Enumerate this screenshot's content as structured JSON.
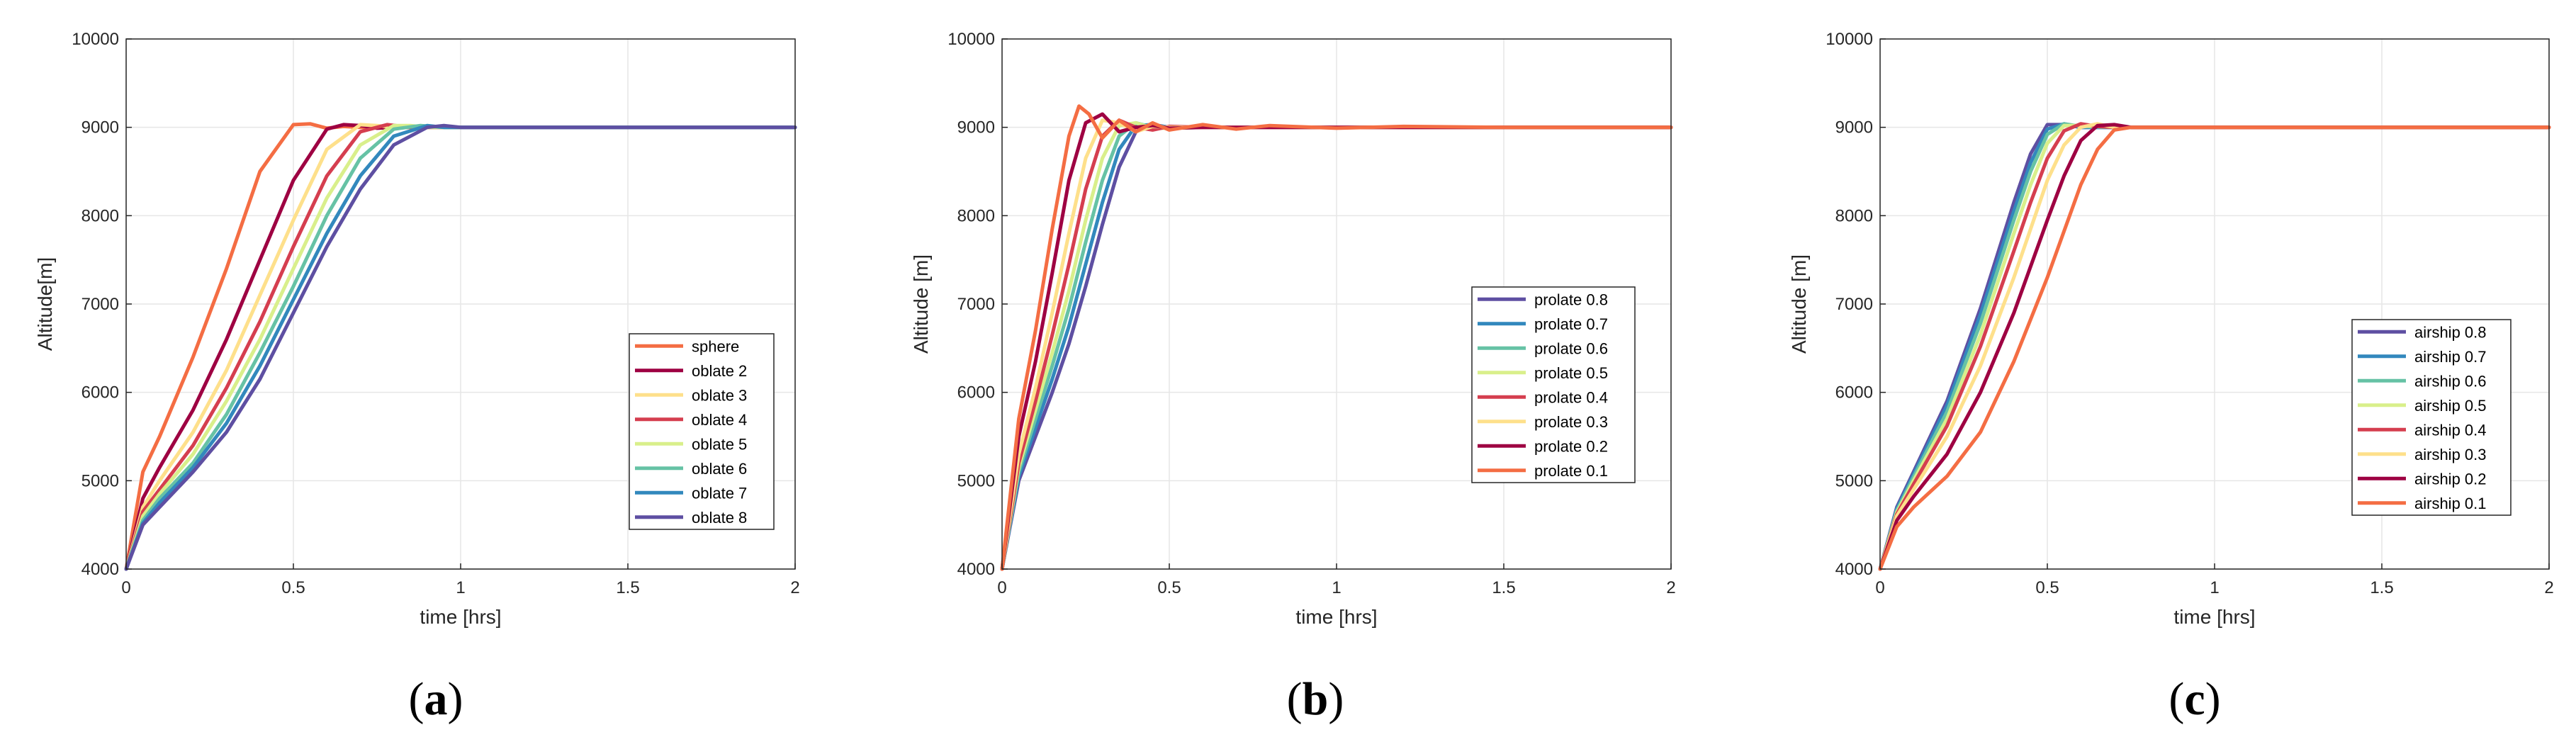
{
  "colors": {
    "grid": "#e6e6e6",
    "axis": "#262626",
    "series": [
      "#f46d43",
      "#9e0142",
      "#fee08b",
      "#d53e4f",
      "#d9ef8b",
      "#66c2a5",
      "#3288bd",
      "#5e4fa2"
    ]
  },
  "chart_data": [
    {
      "type": "line",
      "panel": "(a)",
      "title": "",
      "xlabel": "time [hrs]",
      "ylabel": "Altitude[m]",
      "xlim": [
        0,
        2
      ],
      "ylim": [
        4000,
        10000
      ],
      "xticks": [
        0,
        0.5,
        1,
        1.5,
        2
      ],
      "xtick_labels": [
        "0",
        "0.5",
        "1",
        "1.5",
        "2"
      ],
      "yticks": [
        4000,
        5000,
        6000,
        7000,
        8000,
        9000,
        10000
      ],
      "ytick_labels": [
        "4000",
        "5000",
        "6000",
        "7000",
        "8000",
        "9000",
        "10000"
      ],
      "grid": true,
      "legend_position": "lower-right",
      "series": [
        {
          "name": "sphere",
          "color": "#f46d43",
          "x": [
            0,
            0.05,
            0.1,
            0.2,
            0.3,
            0.4,
            0.5,
            0.55,
            0.6,
            0.65,
            0.7,
            0.8,
            2.0
          ],
          "y": [
            4000,
            5100,
            5500,
            6400,
            7400,
            8500,
            9030,
            9040,
            8990,
            9010,
            9000,
            9000,
            9000
          ]
        },
        {
          "name": "oblate 2",
          "color": "#9e0142",
          "x": [
            0,
            0.05,
            0.1,
            0.2,
            0.3,
            0.4,
            0.5,
            0.6,
            0.65,
            0.7,
            0.75,
            0.8,
            2.0
          ],
          "y": [
            4000,
            4800,
            5150,
            5800,
            6600,
            7500,
            8400,
            8980,
            9030,
            9020,
            8990,
            9000,
            9000
          ]
        },
        {
          "name": "oblate 3",
          "color": "#fee08b",
          "x": [
            0,
            0.05,
            0.1,
            0.2,
            0.3,
            0.4,
            0.5,
            0.6,
            0.7,
            0.75,
            0.8,
            2.0
          ],
          "y": [
            4000,
            4700,
            5000,
            5550,
            6250,
            7100,
            7950,
            8750,
            9030,
            9020,
            9000,
            9000
          ]
        },
        {
          "name": "oblate 4",
          "color": "#d53e4f",
          "x": [
            0,
            0.05,
            0.1,
            0.2,
            0.3,
            0.4,
            0.5,
            0.6,
            0.7,
            0.78,
            0.85,
            2.0
          ],
          "y": [
            4000,
            4650,
            4900,
            5400,
            6050,
            6800,
            7650,
            8450,
            8950,
            9030,
            9000,
            9000
          ]
        },
        {
          "name": "oblate 5",
          "color": "#d9ef8b",
          "x": [
            0,
            0.05,
            0.1,
            0.2,
            0.3,
            0.4,
            0.5,
            0.6,
            0.7,
            0.8,
            0.85,
            0.9,
            2.0
          ],
          "y": [
            4000,
            4600,
            4850,
            5300,
            5900,
            6600,
            7400,
            8200,
            8800,
            9020,
            9020,
            9000,
            9000
          ]
        },
        {
          "name": "oblate 6",
          "color": "#66c2a5",
          "x": [
            0,
            0.05,
            0.1,
            0.2,
            0.3,
            0.4,
            0.5,
            0.6,
            0.7,
            0.8,
            0.88,
            0.95,
            2.0
          ],
          "y": [
            4000,
            4550,
            4800,
            5200,
            5750,
            6450,
            7200,
            8000,
            8650,
            8980,
            9020,
            9000,
            9000
          ]
        },
        {
          "name": "oblate 7",
          "color": "#3288bd",
          "x": [
            0,
            0.05,
            0.1,
            0.2,
            0.3,
            0.4,
            0.5,
            0.6,
            0.7,
            0.8,
            0.9,
            0.95,
            2.0
          ],
          "y": [
            4000,
            4520,
            4750,
            5150,
            5650,
            6300,
            7050,
            7800,
            8450,
            8900,
            9020,
            9000,
            9000
          ]
        },
        {
          "name": "oblate 8",
          "color": "#5e4fa2",
          "x": [
            0,
            0.05,
            0.1,
            0.2,
            0.3,
            0.4,
            0.5,
            0.6,
            0.7,
            0.8,
            0.9,
            0.95,
            1.0,
            2.0
          ],
          "y": [
            4000,
            4500,
            4700,
            5100,
            5550,
            6150,
            6900,
            7650,
            8300,
            8800,
            9000,
            9020,
            9000,
            9000
          ]
        }
      ]
    },
    {
      "type": "line",
      "panel": "(b)",
      "title": "",
      "xlabel": "time [hrs]",
      "ylabel": "Altitude [m]",
      "xlim": [
        0,
        2
      ],
      "ylim": [
        4000,
        10000
      ],
      "xticks": [
        0,
        0.5,
        1,
        1.5,
        2
      ],
      "xtick_labels": [
        "0",
        "0.5",
        "1",
        "1.5",
        "2"
      ],
      "yticks": [
        4000,
        5000,
        6000,
        7000,
        8000,
        9000,
        10000
      ],
      "ytick_labels": [
        "4000",
        "5000",
        "6000",
        "7000",
        "8000",
        "9000",
        "10000"
      ],
      "grid": true,
      "legend_position": "right",
      "series": [
        {
          "name": "prolate 0.8",
          "color": "#5e4fa2",
          "x": [
            0,
            0.05,
            0.1,
            0.15,
            0.2,
            0.25,
            0.3,
            0.35,
            0.4,
            0.45,
            0.5,
            0.6,
            0.8,
            2.0
          ],
          "y": [
            4000,
            5000,
            5500,
            6000,
            6550,
            7200,
            7900,
            8550,
            8950,
            9030,
            9000,
            9000,
            9000,
            9000
          ]
        },
        {
          "name": "prolate 0.7",
          "color": "#3288bd",
          "x": [
            0,
            0.05,
            0.1,
            0.15,
            0.2,
            0.25,
            0.3,
            0.35,
            0.4,
            0.45,
            0.5,
            0.6,
            0.8,
            2.0
          ],
          "y": [
            4000,
            5050,
            5600,
            6150,
            6750,
            7450,
            8150,
            8750,
            9020,
            9030,
            9000,
            9000,
            9000,
            9000
          ]
        },
        {
          "name": "prolate 0.6",
          "color": "#66c2a5",
          "x": [
            0,
            0.05,
            0.1,
            0.15,
            0.2,
            0.25,
            0.3,
            0.35,
            0.4,
            0.45,
            0.5,
            0.6,
            0.8,
            2.0
          ],
          "y": [
            4000,
            5100,
            5700,
            6300,
            6950,
            7700,
            8400,
            8900,
            9050,
            9000,
            8990,
            9000,
            9000,
            9000
          ]
        },
        {
          "name": "prolate 0.5",
          "color": "#d9ef8b",
          "x": [
            0,
            0.05,
            0.1,
            0.15,
            0.2,
            0.25,
            0.3,
            0.35,
            0.4,
            0.45,
            0.5,
            0.6,
            0.8,
            2.0
          ],
          "y": [
            4000,
            5150,
            5800,
            6450,
            7150,
            7950,
            8650,
            9020,
            9050,
            8990,
            8990,
            9000,
            9000,
            9000
          ]
        },
        {
          "name": "prolate 0.4",
          "color": "#d53e4f",
          "x": [
            0,
            0.05,
            0.1,
            0.15,
            0.2,
            0.25,
            0.3,
            0.35,
            0.4,
            0.45,
            0.5,
            0.6,
            0.8,
            2.0
          ],
          "y": [
            4000,
            5200,
            5900,
            6650,
            7450,
            8300,
            8900,
            9080,
            9000,
            8970,
            9010,
            9000,
            9000,
            9000
          ]
        },
        {
          "name": "prolate 0.3",
          "color": "#fee08b",
          "x": [
            0,
            0.05,
            0.1,
            0.15,
            0.2,
            0.25,
            0.3,
            0.35,
            0.4,
            0.45,
            0.5,
            0.6,
            0.8,
            2.0
          ],
          "y": [
            4000,
            5300,
            6050,
            6900,
            7800,
            8650,
            9080,
            9050,
            8950,
            9010,
            9000,
            9000,
            9000,
            9000
          ]
        },
        {
          "name": "prolate 0.2",
          "color": "#9e0142",
          "x": [
            0,
            0.05,
            0.1,
            0.15,
            0.2,
            0.25,
            0.3,
            0.35,
            0.4,
            0.45,
            0.5,
            0.6,
            0.8,
            2.0
          ],
          "y": [
            4000,
            5500,
            6350,
            7350,
            8400,
            9050,
            9150,
            8950,
            9000,
            9020,
            8990,
            9000,
            9000,
            9000
          ]
        },
        {
          "name": "prolate 0.1",
          "color": "#f46d43",
          "x": [
            0,
            0.05,
            0.1,
            0.15,
            0.2,
            0.23,
            0.26,
            0.3,
            0.35,
            0.4,
            0.45,
            0.5,
            0.6,
            0.7,
            0.8,
            1.0,
            1.2,
            1.5,
            2.0
          ],
          "y": [
            4000,
            5700,
            6700,
            7850,
            8900,
            9240,
            9150,
            8880,
            9080,
            8950,
            9050,
            8970,
            9030,
            8980,
            9020,
            8990,
            9010,
            9000,
            9000
          ]
        }
      ]
    },
    {
      "type": "line",
      "panel": "(c)",
      "title": "",
      "xlabel": "time [hrs]",
      "ylabel": "Altitude [m]",
      "xlim": [
        0,
        2
      ],
      "ylim": [
        4000,
        10000
      ],
      "xticks": [
        0,
        0.5,
        1,
        1.5,
        2
      ],
      "xtick_labels": [
        "0",
        "0.5",
        "1",
        "1.5",
        "2"
      ],
      "yticks": [
        4000,
        5000,
        6000,
        7000,
        8000,
        9000,
        10000
      ],
      "ytick_labels": [
        "4000",
        "5000",
        "6000",
        "7000",
        "8000",
        "9000",
        "10000"
      ],
      "grid": true,
      "legend_position": "lower-right",
      "series": [
        {
          "name": "airship 0.8",
          "color": "#5e4fa2",
          "x": [
            0,
            0.05,
            0.1,
            0.2,
            0.3,
            0.4,
            0.45,
            0.5,
            0.55,
            0.6,
            0.7,
            2.0
          ],
          "y": [
            4000,
            4700,
            5100,
            5900,
            6950,
            8150,
            8700,
            9030,
            9030,
            9000,
            9000,
            9000
          ]
        },
        {
          "name": "airship 0.7",
          "color": "#3288bd",
          "x": [
            0,
            0.05,
            0.1,
            0.2,
            0.3,
            0.4,
            0.45,
            0.5,
            0.55,
            0.6,
            0.7,
            2.0
          ],
          "y": [
            4000,
            4680,
            5070,
            5850,
            6880,
            8050,
            8600,
            8980,
            9040,
            9000,
            9000,
            9000
          ]
        },
        {
          "name": "airship 0.6",
          "color": "#66c2a5",
          "x": [
            0,
            0.05,
            0.1,
            0.2,
            0.3,
            0.4,
            0.45,
            0.5,
            0.55,
            0.6,
            0.7,
            2.0
          ],
          "y": [
            4000,
            4660,
            5040,
            5780,
            6780,
            7950,
            8500,
            8920,
            9040,
            9010,
            9000,
            9000
          ]
        },
        {
          "name": "airship 0.5",
          "color": "#d9ef8b",
          "x": [
            0,
            0.05,
            0.1,
            0.2,
            0.3,
            0.4,
            0.45,
            0.5,
            0.55,
            0.6,
            0.7,
            2.0
          ],
          "y": [
            4000,
            4640,
            5000,
            5700,
            6650,
            7800,
            8350,
            8820,
            9020,
            9020,
            9000,
            9000
          ]
        },
        {
          "name": "airship 0.4",
          "color": "#d53e4f",
          "x": [
            0,
            0.05,
            0.1,
            0.2,
            0.3,
            0.4,
            0.45,
            0.5,
            0.55,
            0.6,
            0.65,
            0.7,
            2.0
          ],
          "y": [
            4000,
            4620,
            4960,
            5620,
            6520,
            7600,
            8150,
            8650,
            8960,
            9040,
            9010,
            9000,
            9000
          ]
        },
        {
          "name": "airship 0.3",
          "color": "#fee08b",
          "x": [
            0,
            0.05,
            0.1,
            0.2,
            0.3,
            0.4,
            0.5,
            0.55,
            0.6,
            0.65,
            0.7,
            2.0
          ],
          "y": [
            4000,
            4600,
            4900,
            5500,
            6300,
            7300,
            8400,
            8800,
            9000,
            9040,
            9000,
            9000
          ]
        },
        {
          "name": "airship 0.2",
          "color": "#9e0142",
          "x": [
            0,
            0.05,
            0.1,
            0.2,
            0.3,
            0.4,
            0.5,
            0.55,
            0.6,
            0.65,
            0.7,
            0.75,
            2.0
          ],
          "y": [
            4000,
            4550,
            4820,
            5300,
            6000,
            6900,
            7950,
            8450,
            8850,
            9020,
            9030,
            9000,
            9000
          ]
        },
        {
          "name": "airship 0.1",
          "color": "#f46d43",
          "x": [
            0,
            0.05,
            0.1,
            0.2,
            0.3,
            0.4,
            0.5,
            0.6,
            0.65,
            0.7,
            0.75,
            0.8,
            2.0
          ],
          "y": [
            4000,
            4480,
            4700,
            5050,
            5550,
            6350,
            7300,
            8350,
            8750,
            8970,
            9000,
            9000,
            9000
          ]
        }
      ]
    }
  ]
}
